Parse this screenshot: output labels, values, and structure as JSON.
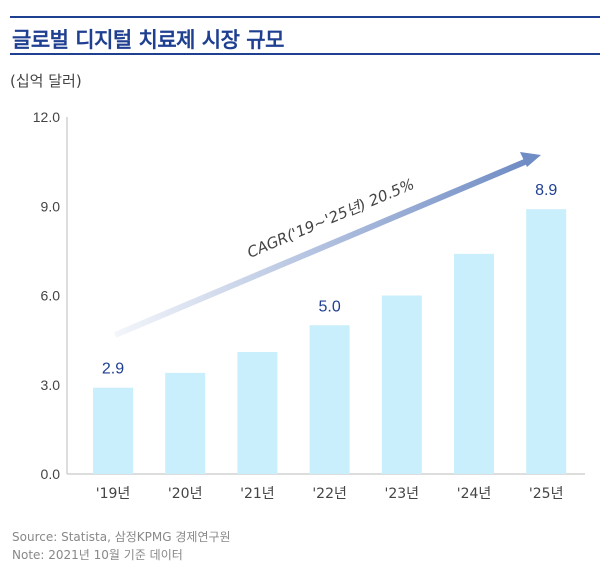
{
  "header": {
    "title": "글로벌 디지털 치료제 시장 규모",
    "unit": "(십억  달러)"
  },
  "chart_data": {
    "type": "bar",
    "title": "글로벌 디지털 치료제 시장 규모",
    "ylabel": "(십억  달러)",
    "xlabel": "",
    "categories": [
      "'19년",
      "'20년",
      "'21년",
      "'22년",
      "'23년",
      "'24년",
      "'25년"
    ],
    "values": [
      2.9,
      3.4,
      4.1,
      5.0,
      6.0,
      7.4,
      8.9
    ],
    "data_labels": {
      "0": "2.9",
      "3": "5.0",
      "6": "8.9"
    },
    "yticks": [
      "0.0",
      "3.0",
      "6.0",
      "9.0",
      "12.0"
    ],
    "ylim": [
      0,
      12
    ],
    "grid": false,
    "annotation": "CAGR('19~'25년) 20.5%",
    "colors": {
      "bar": "#c9effc",
      "label": "#1f3f91",
      "arrow": "#6f8cc4"
    }
  },
  "footer": {
    "source": "Source: Statista, 삼정KPMG 경제연구원",
    "note": "Note: 2021년 10월 기준 데이터"
  }
}
